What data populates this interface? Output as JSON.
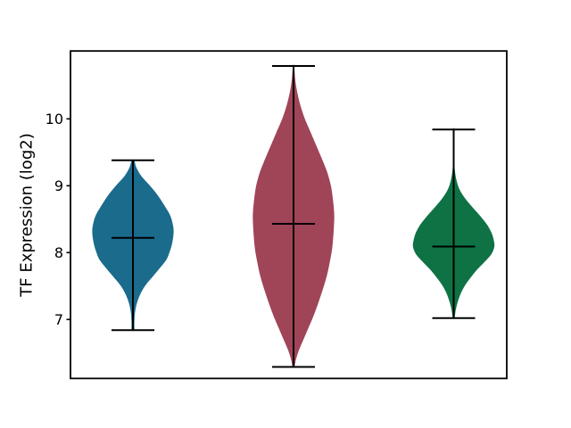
{
  "figure": {
    "background": "#ffffff",
    "frame_color": "#000000",
    "line_color": "#000000"
  },
  "chart_data": {
    "type": "violin",
    "ylabel": "TF Expression (log2)",
    "yticks": [
      10,
      9,
      8,
      7
    ],
    "ytick_labels": [
      "10",
      "9",
      "8",
      "7"
    ],
    "ylim": [
      6.1,
      11.0
    ],
    "show_means": true,
    "show_extrema": true,
    "groups": [
      {
        "name": "violin-1",
        "color": "#1a6b8c",
        "mean": 8.22,
        "min": 6.84,
        "max": 9.38,
        "profile": [
          [
            9.38,
            0.03
          ],
          [
            9.28,
            0.08
          ],
          [
            9.15,
            0.2
          ],
          [
            9.0,
            0.42
          ],
          [
            8.85,
            0.62
          ],
          [
            8.7,
            0.78
          ],
          [
            8.55,
            0.92
          ],
          [
            8.4,
            0.99
          ],
          [
            8.28,
            1.0
          ],
          [
            8.15,
            0.97
          ],
          [
            8.02,
            0.91
          ],
          [
            7.9,
            0.83
          ],
          [
            7.78,
            0.68
          ],
          [
            7.65,
            0.5
          ],
          [
            7.52,
            0.32
          ],
          [
            7.4,
            0.2
          ],
          [
            7.25,
            0.1
          ],
          [
            7.1,
            0.05
          ],
          [
            6.95,
            0.035
          ],
          [
            6.84,
            0.03
          ]
        ]
      },
      {
        "name": "violin-2",
        "color": "#a04458",
        "mean": 8.43,
        "min": 6.29,
        "max": 10.79,
        "profile": [
          [
            10.79,
            0.015
          ],
          [
            10.6,
            0.04
          ],
          [
            10.4,
            0.09
          ],
          [
            10.2,
            0.17
          ],
          [
            10.0,
            0.28
          ],
          [
            9.8,
            0.42
          ],
          [
            9.6,
            0.56
          ],
          [
            9.4,
            0.7
          ],
          [
            9.2,
            0.83
          ],
          [
            9.0,
            0.92
          ],
          [
            8.8,
            0.97
          ],
          [
            8.6,
            1.0
          ],
          [
            8.45,
            1.0
          ],
          [
            8.25,
            0.98
          ],
          [
            8.05,
            0.95
          ],
          [
            7.85,
            0.89
          ],
          [
            7.65,
            0.82
          ],
          [
            7.45,
            0.72
          ],
          [
            7.25,
            0.61
          ],
          [
            7.05,
            0.49
          ],
          [
            6.85,
            0.35
          ],
          [
            6.68,
            0.23
          ],
          [
            6.52,
            0.12
          ],
          [
            6.4,
            0.06
          ],
          [
            6.29,
            0.02
          ]
        ]
      },
      {
        "name": "violin-3",
        "color": "#0e7245",
        "mean": 8.09,
        "min": 7.02,
        "max": 9.84,
        "profile": [
          [
            9.84,
            0.008
          ],
          [
            9.6,
            0.01
          ],
          [
            9.4,
            0.015
          ],
          [
            9.22,
            0.03
          ],
          [
            9.08,
            0.07
          ],
          [
            8.95,
            0.14
          ],
          [
            8.82,
            0.27
          ],
          [
            8.68,
            0.46
          ],
          [
            8.55,
            0.65
          ],
          [
            8.42,
            0.82
          ],
          [
            8.3,
            0.93
          ],
          [
            8.18,
            0.99
          ],
          [
            8.08,
            1.0
          ],
          [
            7.97,
            0.92
          ],
          [
            7.86,
            0.76
          ],
          [
            7.74,
            0.57
          ],
          [
            7.62,
            0.41
          ],
          [
            7.5,
            0.27
          ],
          [
            7.38,
            0.17
          ],
          [
            7.26,
            0.1
          ],
          [
            7.14,
            0.05
          ],
          [
            7.02,
            0.02
          ]
        ]
      }
    ]
  }
}
